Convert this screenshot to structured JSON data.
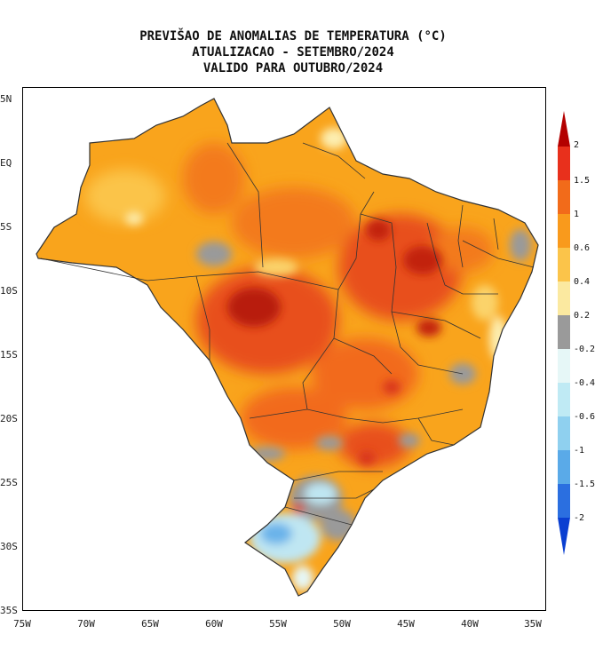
{
  "title": {
    "line1": "PREVIŠAO DE ANOMALIAS DE TEMPERATURA (°C)",
    "line2": "ATUALIZACAO - SETEMBRO/2024",
    "line3": "VALIDO PARA OUTUBRO/2024"
  },
  "lat_labels": [
    "5N",
    "EQ",
    "5S",
    "10S",
    "15S",
    "20S",
    "25S",
    "30S",
    "35S"
  ],
  "lon_labels": [
    "75W",
    "70W",
    "65W",
    "60W",
    "55W",
    "50W",
    "45W",
    "40W",
    "35W"
  ],
  "colorbar": {
    "labels": [
      "2",
      "1.5",
      "1",
      "0.6",
      "0.4",
      "0.2",
      "-0.2",
      "-0.4",
      "-0.6",
      "-1",
      "-1.5",
      "-2"
    ],
    "colors": [
      "#b30000",
      "#e8301c",
      "#f26b1a",
      "#f99a1c",
      "#fbc44a",
      "#fbe9a0",
      "#9a9a9a",
      "#e6f7f7",
      "#bfeaf4",
      "#8fd0ef",
      "#5aaae8",
      "#2b6fe0",
      "#0a3fd1"
    ]
  },
  "map_colors": {
    "warm_base": "#f9a41c",
    "warm_mid": "#f37a1d",
    "hot": "#e84a1c",
    "very_hot": "#b81a0e",
    "light": "#fbd36a",
    "pale": "#fdeeb0",
    "neutral": "#9a9a9a",
    "cool": "#bfe6f2",
    "cold": "#6bb3ea"
  }
}
